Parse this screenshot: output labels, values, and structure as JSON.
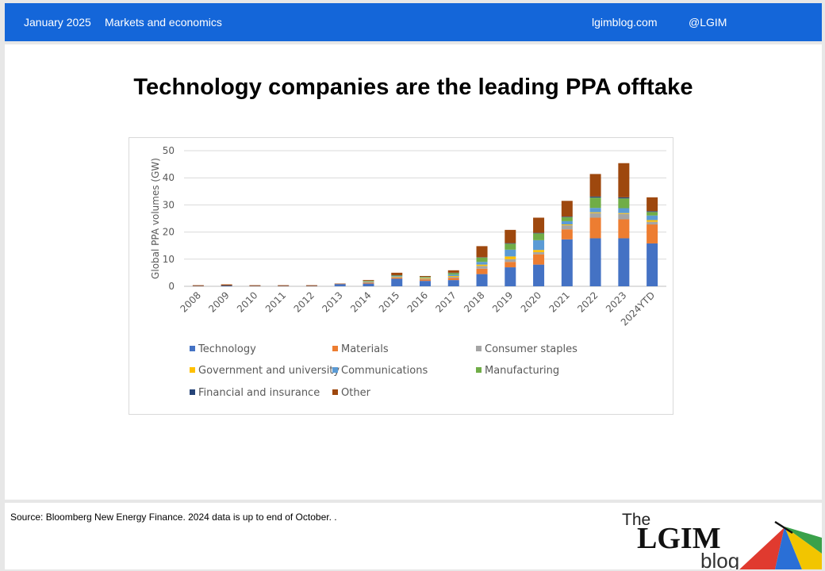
{
  "header": {
    "date": "January 2025",
    "section": "Markets and economics",
    "site": "lgimblog.com",
    "handle": "@LGIM"
  },
  "slide": {
    "title": "Technology companies are the leading PPA offtake"
  },
  "footer": {
    "source": "Source: Bloomberg New Energy Finance. 2024 data is up to  end of October. ."
  },
  "logo": {
    "line1": "The",
    "line2": "LGIM",
    "line3": "blog"
  },
  "chart_data": {
    "type": "bar",
    "stacked": true,
    "title": "",
    "xlabel": "",
    "ylabel": "Global PPA volumes (GW)",
    "ylim": [
      0,
      50
    ],
    "yticks": [
      0,
      10,
      20,
      30,
      40,
      50
    ],
    "grid": true,
    "legend_position": "bottom",
    "categories": [
      "2008",
      "2009",
      "2010",
      "2011",
      "2012",
      "2013",
      "2014",
      "2015",
      "2016",
      "2017",
      "2018",
      "2019",
      "2020",
      "2021",
      "2022",
      "2023",
      "2024YTD"
    ],
    "series": [
      {
        "name": "Technology",
        "color": "#4472c4",
        "values": [
          0.1,
          0.1,
          0.1,
          0.1,
          0.1,
          0.8,
          1.0,
          2.8,
          2.0,
          2.3,
          4.5,
          7.0,
          8.0,
          17.3,
          17.7,
          17.7,
          15.8
        ]
      },
      {
        "name": "Materials",
        "color": "#ed7d31",
        "values": [
          0,
          0,
          0,
          0,
          0,
          0,
          0.3,
          0.4,
          0.5,
          0.8,
          2.0,
          2.0,
          3.8,
          3.7,
          7.6,
          7.0,
          7.0
        ]
      },
      {
        "name": "Consumer staples",
        "color": "#a5a5a5",
        "values": [
          0,
          0,
          0,
          0,
          0,
          0,
          0.2,
          0.2,
          0.3,
          0.4,
          1.0,
          1.0,
          0.8,
          1.5,
          1.7,
          2.0,
          1.0
        ]
      },
      {
        "name": "Government and university",
        "color": "#ffc000",
        "values": [
          0,
          0,
          0,
          0,
          0,
          0,
          0.1,
          0.2,
          0.3,
          0.3,
          0.5,
          1.0,
          0.8,
          0.3,
          0.3,
          0.3,
          0.6
        ]
      },
      {
        "name": "Communications",
        "color": "#5b9bd5",
        "values": [
          0,
          0,
          0,
          0,
          0,
          0,
          0.2,
          0.2,
          0.2,
          0.5,
          1.0,
          2.5,
          3.6,
          1.2,
          1.6,
          1.8,
          1.7
        ]
      },
      {
        "name": "Manufacturing",
        "color": "#70ad47",
        "values": [
          0,
          0,
          0,
          0,
          0,
          0,
          0.2,
          0.2,
          0.2,
          0.6,
          1.6,
          2.2,
          2.5,
          1.5,
          3.8,
          3.6,
          1.3
        ]
      },
      {
        "name": "Financial and insurance",
        "color": "#264478",
        "values": [
          0,
          0.2,
          0,
          0,
          0,
          0,
          0,
          0.1,
          0,
          0.1,
          0.1,
          0.2,
          0.2,
          0.2,
          0.4,
          0.4,
          0.3
        ]
      },
      {
        "name": "Other",
        "color": "#9e480e",
        "values": [
          0.3,
          0.4,
          0.3,
          0.3,
          0.3,
          0.2,
          0.3,
          0.9,
          0.3,
          0.9,
          4.1,
          4.9,
          5.6,
          5.8,
          8.3,
          12.6,
          5.1
        ]
      }
    ]
  }
}
